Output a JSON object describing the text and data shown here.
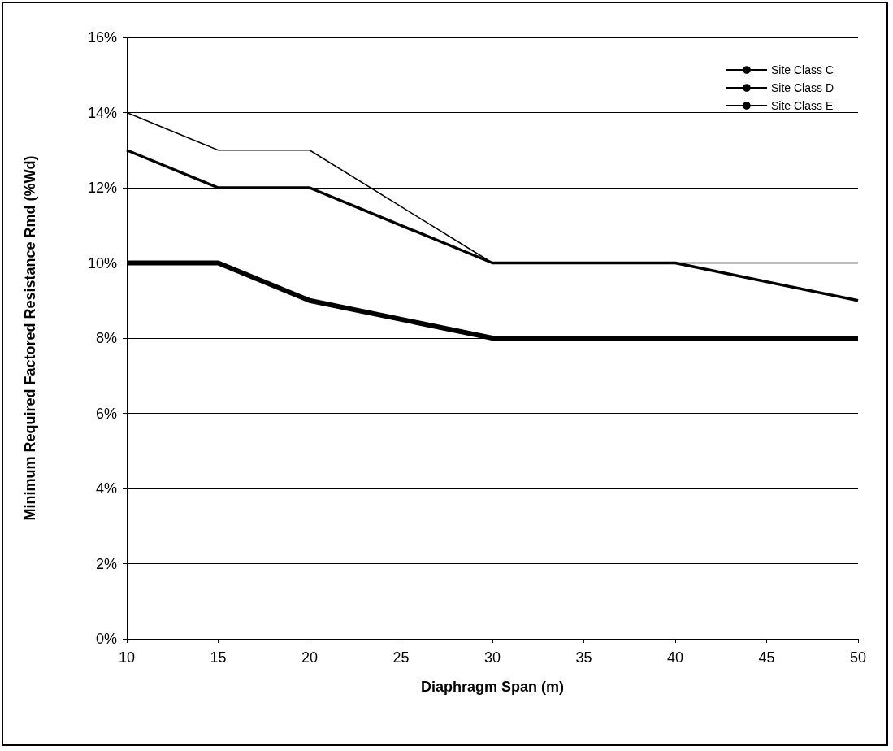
{
  "chart_data": {
    "type": "line",
    "xlabel": "Diaphragm Span (m)",
    "ylabel": "Minimum Required Factored Resistance Rmd (%Wd)",
    "x": [
      10,
      15,
      20,
      30,
      40,
      50
    ],
    "series": [
      {
        "name": "Site Class C",
        "color": "#000000",
        "values": [
          10,
          10,
          9,
          8,
          8,
          8
        ]
      },
      {
        "name": "Site Class D",
        "color": "#000000",
        "values": [
          13,
          12,
          12,
          10,
          10,
          9
        ]
      },
      {
        "name": "Site Class E",
        "color": "#000000",
        "values": [
          14,
          13,
          13,
          10,
          10,
          10
        ]
      }
    ],
    "xlim": [
      10,
      50
    ],
    "xticks": [
      10,
      15,
      20,
      25,
      30,
      35,
      40,
      45,
      50
    ],
    "ylim": [
      0,
      16
    ],
    "yticks": [
      {
        "value": 0,
        "label": "0%"
      },
      {
        "value": 2,
        "label": "2%"
      },
      {
        "value": 4,
        "label": "4%"
      },
      {
        "value": 6,
        "label": "6%"
      },
      {
        "value": 8,
        "label": "8%"
      },
      {
        "value": 10,
        "label": "10%"
      },
      {
        "value": 12,
        "label": "12%"
      },
      {
        "value": 14,
        "label": "14%"
      },
      {
        "value": 16,
        "label": "16%"
      }
    ],
    "grid": "y",
    "legend": "top right",
    "marker": "none",
    "line_style": "solid"
  }
}
